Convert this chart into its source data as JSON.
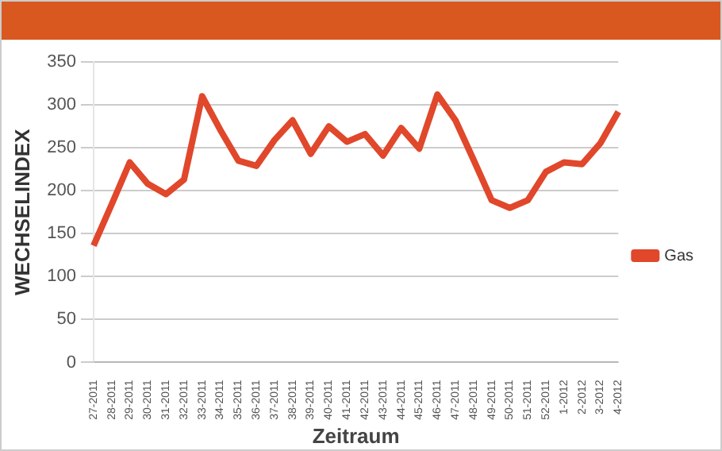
{
  "chart_data": {
    "type": "line",
    "xlabel": "Zeitraum",
    "ylabel": "WECHSELINDEX",
    "categories": [
      "27-2011",
      "28-2011",
      "29-2011",
      "30-2011",
      "31-2011",
      "32-2011",
      "33-2011",
      "34-2011",
      "35-2011",
      "36-2011",
      "37-2011",
      "38-2011",
      "39-2011",
      "40-2011",
      "41-2011",
      "42-2011",
      "43-2011",
      "44-2011",
      "45-2011",
      "46-2011",
      "47-2011",
      "48-2011",
      "49-2011",
      "50-2011",
      "51-2011",
      "52-2011",
      "1-2012",
      "2-2012",
      "3-2012",
      "4-2012"
    ],
    "series": [
      {
        "name": "Gas",
        "color": "#e0472b",
        "values": [
          136,
          184,
          233,
          208,
          196,
          213,
          310,
          271,
          235,
          229,
          259,
          282,
          243,
          275,
          257,
          266,
          241,
          273,
          249,
          312,
          282,
          236,
          189,
          180,
          189,
          222,
          233,
          231,
          255,
          292
        ]
      }
    ],
    "ylim": [
      0,
      350
    ],
    "yticks": [
      0,
      50,
      100,
      150,
      200,
      250,
      300,
      350
    ],
    "grid": "y",
    "legend": "right",
    "marker": "none",
    "line_style": "solid"
  }
}
